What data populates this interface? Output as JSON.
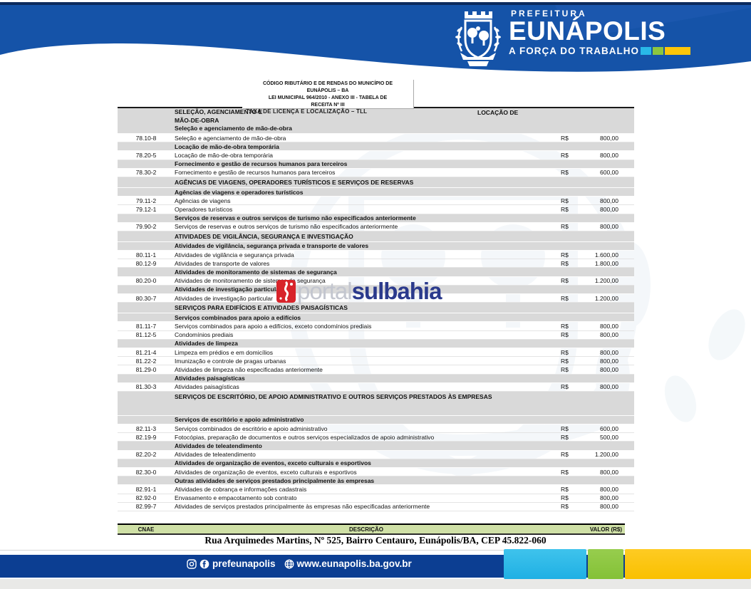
{
  "header": {
    "prefeitura": "PREFEITURA",
    "city": "EUNÁPOLIS",
    "slogan": "A FORÇA DO TRABALHO"
  },
  "title_box": {
    "line1": "CÓDIGO RIBUTÁRIO E DE RENDAS DO MUNICÍPIO DE",
    "line2": "EUNÁPOLIS – BA",
    "line3": "LEI MUNICIPAL 964/2010 - ANEXO III - TABELA DE",
    "line4": "RECEITA Nº III",
    "subtitle": "TAXA DE LICENÇA E LOCALIZAÇÃO – TLL"
  },
  "table": {
    "header_row": {
      "left_text": "SELEÇÃO, AGENCIAMENTO E",
      "right_text": "LOCAÇÃO DE",
      "line2": "MÃO-DE-OBRA",
      "line3": "Seleção e agenciamento de mão-de-obra"
    },
    "rows": [
      {
        "type": "item",
        "code": "78.10-8",
        "desc": "Seleção e agenciamento de mão-de-obra",
        "cur": "R$",
        "val": "800,00"
      },
      {
        "type": "sub",
        "desc": "Locação de mão-de-obra temporária"
      },
      {
        "type": "item",
        "code": "78.20-5",
        "desc": "Locação de mão-de-obra temporária",
        "cur": "R$",
        "val": "800,00"
      },
      {
        "type": "sub",
        "desc": "Fornecimento e gestão de recursos humanos para terceiros"
      },
      {
        "type": "item",
        "code": "78.30-2",
        "desc": "Fornecimento e gestão de recursos humanos para terceiros",
        "cur": "R$",
        "val": "600,00"
      },
      {
        "type": "section",
        "desc": "AGÊNCIAS DE VIAGENS, OPERADORES TURÍSTICOS E SERVIÇOS DE RESERVAS"
      },
      {
        "type": "sub",
        "desc": "Agências de viagens e operadores turísticos"
      },
      {
        "type": "item",
        "code": "79.11-2",
        "desc": "Agências de viagens",
        "cur": "R$",
        "val": "800,00"
      },
      {
        "type": "item",
        "code": "79.12-1",
        "desc": "Operadores turísticos",
        "cur": "R$",
        "val": "800,00"
      },
      {
        "type": "sub",
        "desc": "Serviços de reservas e outros serviços de turismo não especificados anteriormente"
      },
      {
        "type": "item",
        "code": "79.90-2",
        "desc": "Serviços de reservas e outros serviços de turismo não especificados anteriormente",
        "cur": "R$",
        "val": "800,00"
      },
      {
        "type": "section",
        "desc": "ATIVIDADES DE VIGILÂNCIA, SEGURANÇA E INVESTIGAÇÃO"
      },
      {
        "type": "sub",
        "desc": "Atividades de vigilância, segurança privada e transporte de valores"
      },
      {
        "type": "item",
        "code": "80.11-1",
        "desc": "Atividades de vigilância e segurança privada",
        "cur": "R$",
        "val": "1.600,00"
      },
      {
        "type": "item",
        "code": "80.12-9",
        "desc": "Atividades de transporte de valores",
        "cur": "R$",
        "val": "1.800,00"
      },
      {
        "type": "sub",
        "desc": "Atividades de monitoramento de sistemas de segurança"
      },
      {
        "type": "item",
        "code": "80.20-0",
        "desc": "Atividades de monitoramento de sistemas de segurança",
        "cur": "R$",
        "val": "1.200,00"
      },
      {
        "type": "sub",
        "desc": "Atividades de investigação particular"
      },
      {
        "type": "item",
        "code": "80.30-7",
        "desc": "Atividades de investigação particular",
        "cur": "R$",
        "val": "1.200,00"
      },
      {
        "type": "section",
        "desc": "SERVIÇOS PARA EDIFÍCIOS E ATIVIDADES PAISAGÍSTICAS"
      },
      {
        "type": "sub",
        "desc": "Serviços combinados para apoio a edifícios"
      },
      {
        "type": "item",
        "code": "81.11-7",
        "desc": "Serviços combinados para apoio a edifícios, exceto condomínios prediais",
        "cur": "R$",
        "val": "800,00"
      },
      {
        "type": "item",
        "code": "81.12-5",
        "desc": "Condomínios prediais",
        "cur": "R$",
        "val": "800,00"
      },
      {
        "type": "sub",
        "desc": "Atividades de limpeza"
      },
      {
        "type": "item",
        "code": "81.21-4",
        "desc": "Limpeza em prédios e em domicílios",
        "cur": "R$",
        "val": "800,00"
      },
      {
        "type": "item",
        "code": "81.22-2",
        "desc": "Imunização e controle de pragas urbanas",
        "cur": "R$",
        "val": "800,00"
      },
      {
        "type": "item",
        "code": "81.29-0",
        "desc": "Atividades de limpeza não especificadas anteriormente",
        "cur": "R$",
        "val": "800,00"
      },
      {
        "type": "sub",
        "desc": "Atividades paisagísticas"
      },
      {
        "type": "item",
        "code": "81.30-3",
        "desc": "Atividades paisagísticas",
        "cur": "R$",
        "val": "800,00"
      },
      {
        "type": "section_tall",
        "desc": "SERVIÇOS DE ESCRITÓRIO, DE APOIO ADMINISTRATIVO E OUTROS SERVIÇOS PRESTADOS ÀS EMPRESAS"
      },
      {
        "type": "sub",
        "desc": "Serviços de escritório e apoio administrativo"
      },
      {
        "type": "item",
        "code": "82.11-3",
        "desc": "Serviços combinados de escritório e apoio administrativo",
        "cur": "R$",
        "val": "600,00"
      },
      {
        "type": "item",
        "code": "82.19-9",
        "desc": "Fotocópias, preparação de documentos e outros serviços especializados de apoio administrativo",
        "cur": "R$",
        "val": "500,00"
      },
      {
        "type": "sub",
        "desc": "Atividades de teleatendimento"
      },
      {
        "type": "item",
        "code": "82.20-2",
        "desc": "Atividades de teleatendimento",
        "cur": "R$",
        "val": "1.200,00"
      },
      {
        "type": "sub",
        "desc": "Atividades de organização de eventos, exceto culturais e esportivos"
      },
      {
        "type": "item",
        "code": "82.30-0",
        "desc": "Atividades de organização de eventos, exceto culturais e esportivos",
        "cur": "R$",
        "val": "800,00"
      },
      {
        "type": "sub",
        "desc": "Outras atividades de serviços prestados principalmente às empresas"
      },
      {
        "type": "item",
        "code": "82.91-1",
        "desc": "Atividades de cobrança e informações cadastrais",
        "cur": "R$",
        "val": "800,00"
      },
      {
        "type": "item",
        "code": "82.92-0",
        "desc": "Envasamento e empacotamento sob contrato",
        "cur": "R$",
        "val": "800,00"
      },
      {
        "type": "item",
        "code": "82.99-7",
        "desc": "Atividades de serviços prestados principalmente às empresas não especificadas anteriormente",
        "cur": "R$",
        "val": "800,00"
      }
    ]
  },
  "columns_bar": {
    "cnae": "CNAE",
    "descricao": "DESCRIÇÃO",
    "valor": "VALOR (R$)"
  },
  "address": "Rua Arquimedes Martins, Nº 525, Bairro Centauro, Eunápolis/BA, CEP 45.822-060",
  "footer": {
    "handle": "prefeunapolis",
    "website": "www.eunapolis.ba.gov.br"
  },
  "watermark": {
    "light": "portal",
    "bold": "sulbahia"
  },
  "colors": {
    "header_blue": "#1553a8",
    "top_line_navy": "#0c2b5e",
    "footer_blue": "#0c3e92",
    "cyan": "#29b9e8",
    "green": "#8cc63f",
    "yellow": "#fdc609",
    "row_gray": "#d9d9d9",
    "columns_bar_bg": "#cfe0a6",
    "watermark_red": "#d8232a",
    "watermark_navy": "#2b3a8c"
  }
}
